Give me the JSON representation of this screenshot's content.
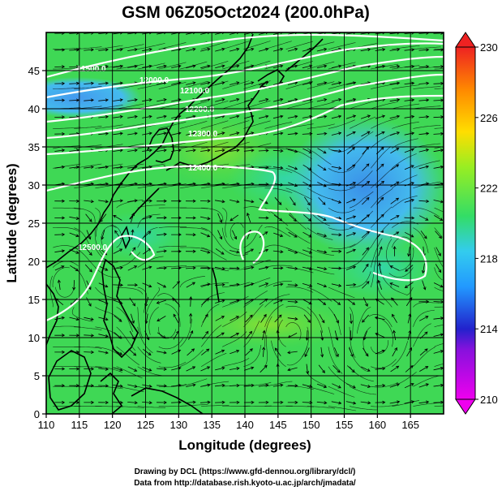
{
  "chart_data": {
    "type": "heatmap",
    "title": "GSM 06Z05Oct2024 (200.0hPa)",
    "xlabel": "Longitude (degrees)",
    "ylabel": "Latitude  (degrees)",
    "xlim": [
      110,
      170
    ],
    "ylim": [
      0,
      50
    ],
    "x_ticks": [
      110,
      115,
      120,
      125,
      130,
      135,
      140,
      145,
      150,
      155,
      160,
      165
    ],
    "y_ticks": [
      0,
      5,
      10,
      15,
      20,
      25,
      30,
      35,
      40,
      45
    ],
    "x_tick_labels": [
      "110",
      "115",
      "120",
      "125",
      "130",
      "135",
      "140",
      "145",
      "150",
      "155",
      "160",
      "165"
    ],
    "y_tick_labels": [
      "0",
      "5",
      "10",
      "15",
      "20",
      "25",
      "30",
      "35",
      "40",
      "45"
    ],
    "grid": true,
    "colorbar": {
      "min": 210,
      "max": 230,
      "ticks": [
        210,
        214,
        218,
        222,
        226,
        230
      ],
      "tick_labels": [
        "210",
        "214",
        "218",
        "222",
        "226",
        "230"
      ],
      "colors": [
        "#ee00ee",
        "#2222cc",
        "#33bbff",
        "#33dd55",
        "#99ee22",
        "#ffcc00",
        "#ff7700",
        "#ee2222"
      ]
    },
    "contour_labels": [
      "11500.0",
      "12000.0",
      "12100.0",
      "12200.0",
      "12300.0",
      "12400.0",
      "12500.0"
    ],
    "overlays": [
      "wind streamlines",
      "geopotential height contours",
      "coastlines"
    ]
  },
  "credits": {
    "line1": "Drawing by DCL (https://www.gfd-dennou.org/library/dcl/)",
    "line2": "Data from http://database.rish.kyoto-u.ac.jp/arch/jmadata/"
  }
}
